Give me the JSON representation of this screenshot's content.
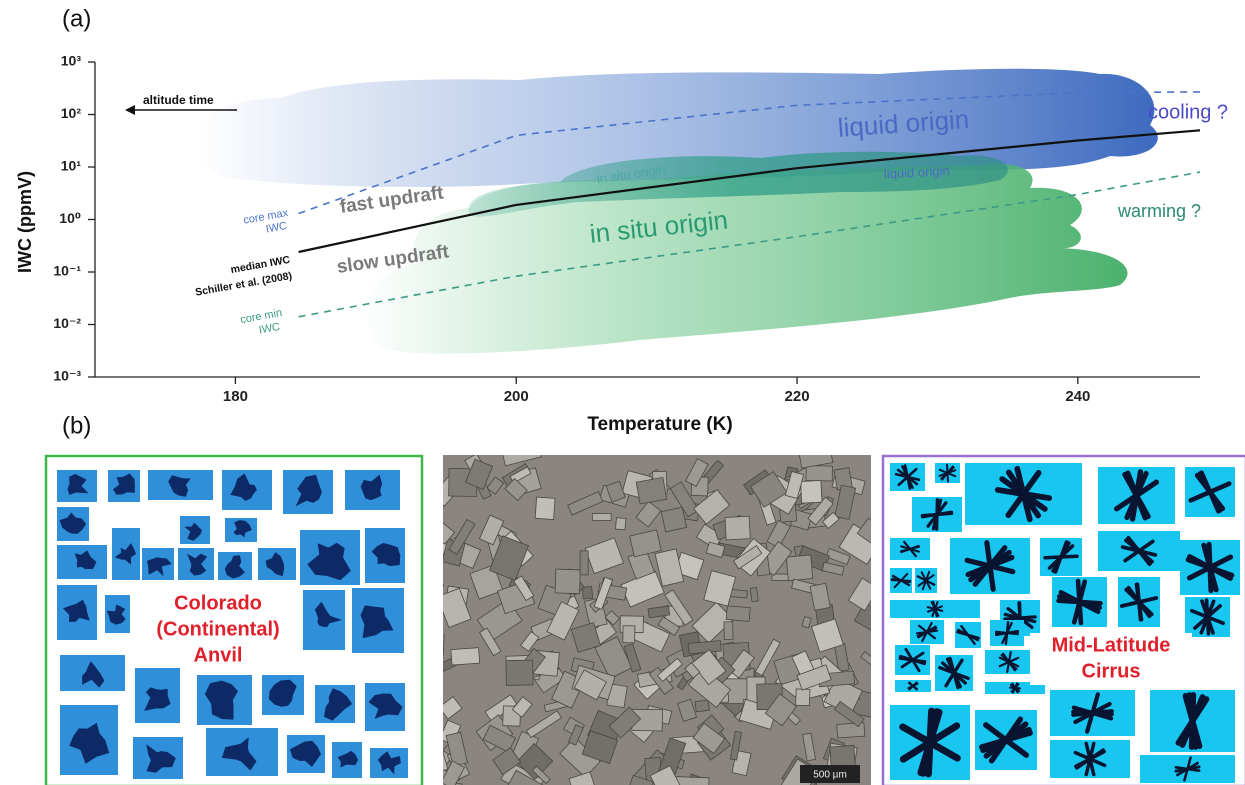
{
  "chart_data": {
    "type": "line",
    "yscale": "log",
    "ylabel": "IWC (ppmV)",
    "xlabel": "Temperature (K)",
    "xlim": [
      170,
      248.7
    ],
    "xticks": [
      180,
      200,
      220,
      240
    ],
    "ylim": [
      0.001,
      1000
    ],
    "yticks": [
      {
        "value": 1000,
        "label": "10³"
      },
      {
        "value": 100,
        "label": "10²"
      },
      {
        "value": 10,
        "label": "10¹"
      },
      {
        "value": 1,
        "label": "10⁰"
      },
      {
        "value": 0.1,
        "label": "10⁻¹"
      },
      {
        "value": 0.01,
        "label": "10⁻²"
      },
      {
        "value": 0.001,
        "label": "10⁻³"
      }
    ],
    "x": [
      184.5,
      200,
      220,
      240,
      248.7
    ],
    "series": [
      {
        "color": "#111111",
        "dash": false,
        "values": [
          0.24,
          1.9,
          9.5,
          32,
          50
        ]
      },
      {
        "color": "#4a74c9",
        "dash": true,
        "values": [
          1.3,
          40,
          150,
          260,
          270
        ]
      },
      {
        "color": "#3a9a85",
        "dash": true,
        "values": [
          0.014,
          0.083,
          0.47,
          3,
          8
        ]
      }
    ],
    "annotations": {
      "altitude_time": "altitude time",
      "core_max": [
        "core max",
        "IWC"
      ],
      "median": [
        "median IWC",
        "Schiller et al. (2008)"
      ],
      "core_min": [
        "core min",
        "IWC"
      ],
      "fast_updraft": "fast updraft",
      "slow_updraft": "slow updraft",
      "liquid_origin": "liquid origin",
      "in_situ_origin": "in situ origin",
      "in_situ_origin_small": "in situ origin",
      "liquid_origin_small": "liquid origin",
      "cooling": "cooling ?",
      "warming": "warming ?"
    }
  },
  "panel_labels": [
    "(a)",
    "(b)"
  ],
  "images": {
    "left_label": [
      "Colorado",
      "(Continental)",
      "Anvil"
    ],
    "scale_bar": "500 µm",
    "right_label": [
      "Mid-Latitude",
      "Cirrus"
    ]
  }
}
